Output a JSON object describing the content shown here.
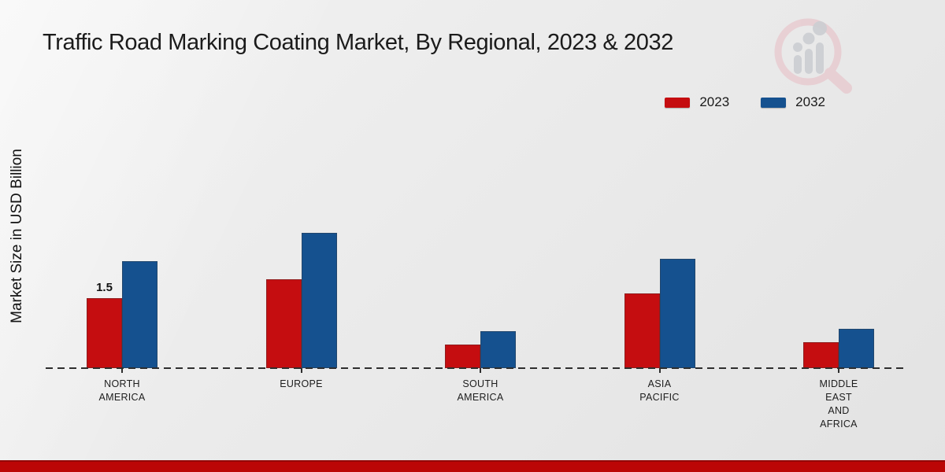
{
  "title": "Traffic Road Marking Coating Market, By Regional, 2023 & 2032",
  "y_axis_label": "Market Size in USD Billion",
  "legend": {
    "items": [
      {
        "label": "2023",
        "color": "#c50d10"
      },
      {
        "label": "2032",
        "color": "#15518f"
      }
    ]
  },
  "chart_data": {
    "type": "bar",
    "title": "Traffic Road Marking Coating Market, By Regional, 2023 & 2032",
    "xlabel": "",
    "ylabel": "Market Size in USD Billion",
    "units": "USD Billion",
    "categories": [
      "NORTH AMERICA",
      "EUROPE",
      "SOUTH AMERICA",
      "ASIA PACIFIC",
      "MIDDLE EAST AND AFRICA"
    ],
    "category_label_lines": [
      [
        "NORTH",
        "AMERICA"
      ],
      [
        "EUROPE"
      ],
      [
        "SOUTH",
        "AMERICA"
      ],
      [
        "ASIA",
        "PACIFIC"
      ],
      [
        "MIDDLE",
        "EAST",
        "AND",
        "AFRICA"
      ]
    ],
    "series": [
      {
        "name": "2023",
        "color": "#c50d10",
        "values": [
          1.5,
          1.9,
          0.5,
          1.6,
          0.55
        ],
        "labels": [
          "1.5",
          null,
          null,
          null,
          null
        ]
      },
      {
        "name": "2032",
        "color": "#15518f",
        "values": [
          2.3,
          2.9,
          0.8,
          2.35,
          0.85
        ],
        "labels": [
          null,
          null,
          null,
          null,
          null
        ]
      }
    ],
    "ylim": [
      0,
      3.2
    ],
    "grid": false,
    "legend_position": "top-right",
    "baseline_style": "dashed"
  },
  "colors": {
    "accent_red": "#c50d10",
    "accent_blue": "#15518f",
    "footer_red": "#bb0606",
    "footer_red_dark": "#930707",
    "background_light": "#f2f2f2",
    "background_dark": "#e3e3e3",
    "text_dark": "#1b1b1b",
    "logo_pink": "#e7c9ce",
    "logo_gray": "#ccced2"
  }
}
